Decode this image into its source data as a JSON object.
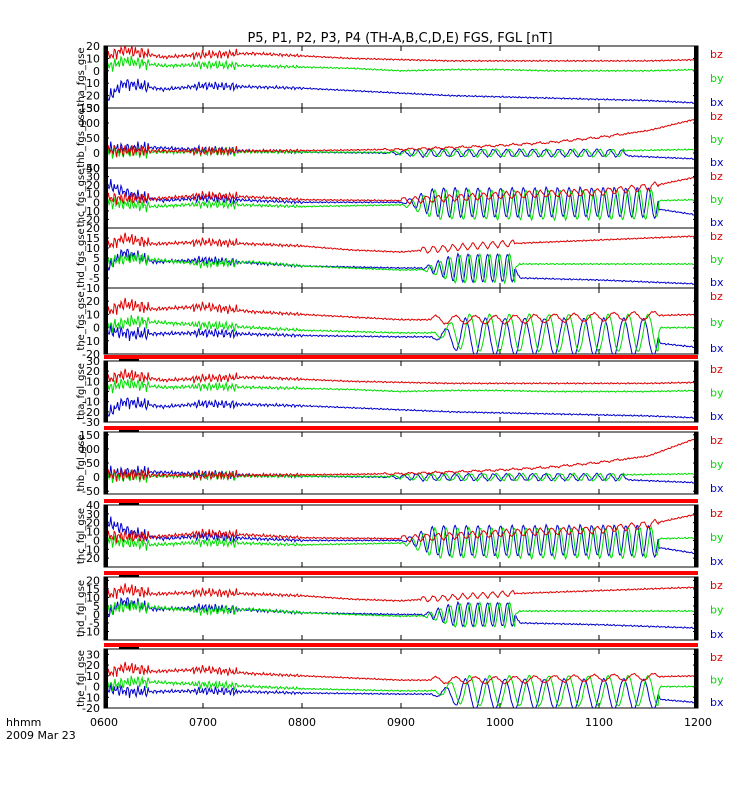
{
  "title": "P5, P1, P2, P3, P4 (TH-A,B,C,D,E) FGS, FGL [nT]",
  "footer": {
    "time_label": "hhmm",
    "date_label": "2009 Mar 23"
  },
  "colors": {
    "bx": "#0000cc",
    "by": "#00dd00",
    "bz": "#dd0000",
    "status_bar": "#ff0000",
    "axes": "#000000"
  },
  "chart_data": {
    "type": "line",
    "x_axis": {
      "label": "hhmm",
      "start": "0600",
      "end": "1200",
      "ticks": [
        "0600",
        "0700",
        "0800",
        "0900",
        "1000",
        "1100",
        "1200"
      ]
    },
    "legend_entries": [
      "bz",
      "by",
      "bx"
    ],
    "panels": [
      {
        "ylabel": "tha_fgs_gse",
        "ylim": [
          -30,
          20
        ],
        "yticks": [
          20,
          10,
          0,
          -10,
          -20,
          -30
        ],
        "status_bar": false,
        "series": {
          "bz": {
            "t": [
              6.0,
              6.2,
              6.6,
              7.0,
              7.5,
              8.0,
              8.5,
              9.0,
              9.5,
              10.0,
              10.5,
              11.0,
              11.5,
              12.0
            ],
            "v": [
              10,
              17,
              11,
              13,
              14,
              12,
              10,
              9,
              8,
              8,
              8,
              8,
              8,
              9
            ]
          },
          "by": {
            "t": [
              6.0,
              6.2,
              6.6,
              7.0,
              7.5,
              8.0,
              8.5,
              9.0,
              9.5,
              10.0,
              10.5,
              11.0,
              11.5,
              12.0
            ],
            "v": [
              2,
              8,
              4,
              5,
              4,
              3,
              2,
              0,
              1,
              1,
              0,
              0,
              0,
              1
            ]
          },
          "bx": {
            "t": [
              6.0,
              6.2,
              6.6,
              7.0,
              7.5,
              8.0,
              8.5,
              9.0,
              9.5,
              10.0,
              10.5,
              11.0,
              11.5,
              12.0
            ],
            "v": [
              -25,
              -10,
              -15,
              -12,
              -13,
              -14,
              -16,
              -18,
              -20,
              -21,
              -22,
              -23,
              -24,
              -26
            ]
          }
        }
      },
      {
        "ylabel": "thb_fgs_gse",
        "ylim": [
          -50,
          150
        ],
        "yticks": [
          150,
          100,
          50,
          0,
          -50
        ],
        "status_bar": false,
        "series": {
          "bz": {
            "t": [
              6.0,
              7.0,
              8.0,
              9.0,
              9.5,
              10.0,
              10.5,
              11.0,
              11.5,
              12.0
            ],
            "v": [
              8,
              6,
              8,
              12,
              18,
              25,
              35,
              52,
              75,
              115
            ]
          },
          "by": {
            "t": [
              6.0,
              7.0,
              8.0,
              9.0,
              9.3,
              11.2,
              11.25,
              12.0
            ],
            "v": [
              2,
              4,
              3,
              2,
              0,
              0,
              8,
              12
            ]
          },
          "bx": {
            "t": [
              6.0,
              6.5,
              7.0,
              7.5,
              8.0,
              8.5,
              9.0,
              11.25,
              11.3,
              12.0
            ],
            "v": [
              14,
              18,
              10,
              6,
              3,
              1,
              0,
              0,
              -10,
              -20
            ]
          }
        },
        "oscillation": {
          "start": 8.8,
          "end": 11.25,
          "period": 0.13,
          "amplitude": 12
        }
      },
      {
        "ylabel": "thc_fgs_gse",
        "ylim": [
          -30,
          40
        ],
        "yticks": [
          40,
          30,
          20,
          10,
          0,
          -10,
          -20
        ],
        "status_bar": false,
        "series": {
          "bz": {
            "t": [
              6.0,
              6.5,
              7.0,
              7.5,
              8.0,
              9.0,
              10.0,
              11.0,
              11.5,
              12.0
            ],
            "v": [
              5,
              4,
              8,
              6,
              3,
              2,
              8,
              12,
              18,
              30
            ]
          },
          "by": {
            "t": [
              6.0,
              6.5,
              7.0,
              8.0,
              9.0,
              9.2,
              11.55,
              11.6,
              12.0
            ],
            "v": [
              0,
              -5,
              -2,
              -5,
              -3,
              -3,
              -3,
              2,
              3
            ]
          },
          "bx": {
            "t": [
              6.0,
              6.3,
              6.6,
              7.0,
              7.5,
              8.0,
              9.0,
              11.55,
              11.6,
              12.0
            ],
            "v": [
              22,
              8,
              2,
              5,
              2,
              0,
              0,
              0,
              -8,
              -15
            ]
          }
        },
        "oscillation": {
          "start": 9.0,
          "end": 11.6,
          "period": 0.115,
          "amplitude": 17
        }
      },
      {
        "ylabel": "thd_fgs_gse",
        "ylim": [
          -10,
          20
        ],
        "yticks": [
          20,
          15,
          10,
          5,
          0,
          -5,
          -10
        ],
        "status_bar": false,
        "series": {
          "bz": {
            "t": [
              6.0,
              6.2,
              6.5,
              7.0,
              7.5,
              8.0,
              8.5,
              9.0,
              9.5,
              10.0,
              11.0,
              12.0
            ],
            "v": [
              10,
              15,
              12,
              13,
              12,
              11,
              9,
              8,
              10,
              12,
              14,
              16
            ]
          },
          "by": {
            "t": [
              6.0,
              6.3,
              7.0,
              7.5,
              8.0,
              8.5,
              9.0,
              10.15,
              10.2,
              12.0
            ],
            "v": [
              3,
              5,
              2,
              3,
              1,
              0,
              -1,
              0,
              2,
              2
            ]
          },
          "bx": {
            "t": [
              6.0,
              6.2,
              6.5,
              7.0,
              8.0,
              9.0,
              10.15,
              10.2,
              11.0,
              12.0
            ],
            "v": [
              -2,
              8,
              3,
              4,
              1,
              0,
              0,
              -5,
              -6,
              -8
            ]
          }
        },
        "oscillation": {
          "start": 9.2,
          "end": 10.15,
          "period": 0.1,
          "amplitude": 7
        }
      },
      {
        "ylabel": "the_fgs_gse",
        "ylim": [
          -20,
          30
        ],
        "yticks": [
          20,
          10,
          0,
          -10,
          -20
        ],
        "status_bar": false,
        "series": {
          "bz": {
            "t": [
              6.0,
              6.2,
              6.5,
              7.0,
              7.5,
              8.0,
              9.0,
              10.0,
              11.0,
              12.0
            ],
            "v": [
              10,
              18,
              14,
              16,
              12,
              10,
              6,
              6,
              8,
              10
            ]
          },
          "by": {
            "t": [
              6.0,
              6.3,
              7.0,
              8.0,
              9.0,
              9.3,
              11.6,
              11.62,
              12.0
            ],
            "v": [
              0,
              5,
              2,
              -2,
              -4,
              -4,
              -4,
              0,
              0
            ]
          },
          "bx": {
            "t": [
              6.0,
              6.3,
              7.0,
              8.0,
              9.0,
              9.3,
              11.6,
              11.62,
              12.0
            ],
            "v": [
              -2,
              -5,
              -4,
              -6,
              -7,
              -7,
              -7,
              -12,
              -15
            ]
          }
        },
        "oscillation": {
          "start": 9.3,
          "end": 11.6,
          "period": 0.2,
          "amplitude": 14
        }
      },
      {
        "ylabel": "tha_fgl_gse",
        "ylim": [
          -30,
          30
        ],
        "yticks": [
          30,
          20,
          10,
          0,
          -10,
          -20,
          -30
        ],
        "status_bar": true,
        "series": {
          "bz": {
            "t": [
              6.0,
              6.2,
              6.6,
              7.0,
              7.5,
              8.0,
              8.5,
              9.0,
              9.5,
              10.0,
              10.5,
              11.0,
              11.5,
              12.0
            ],
            "v": [
              10,
              17,
              11,
              13,
              14,
              12,
              10,
              9,
              8,
              8,
              8,
              8,
              8,
              9
            ]
          },
          "by": {
            "t": [
              6.0,
              6.2,
              6.6,
              7.0,
              7.5,
              8.0,
              8.5,
              9.0,
              9.5,
              10.0,
              10.5,
              11.0,
              11.5,
              12.0
            ],
            "v": [
              2,
              8,
              4,
              5,
              4,
              3,
              2,
              0,
              1,
              1,
              0,
              0,
              0,
              1
            ]
          },
          "bx": {
            "t": [
              6.0,
              6.2,
              6.6,
              7.0,
              7.5,
              8.0,
              8.5,
              9.0,
              9.5,
              10.0,
              10.5,
              11.0,
              11.5,
              12.0
            ],
            "v": [
              -25,
              -10,
              -15,
              -12,
              -13,
              -14,
              -16,
              -18,
              -20,
              -21,
              -22,
              -23,
              -24,
              -26
            ]
          }
        }
      },
      {
        "ylabel": "thb_fgl_gse",
        "ylim": [
          -60,
          160
        ],
        "yticks": [
          150,
          100,
          50,
          0,
          -50
        ],
        "status_bar": true,
        "series": {
          "bz": {
            "t": [
              6.0,
              7.0,
              8.0,
              9.0,
              9.5,
              10.0,
              10.5,
              11.0,
              11.5,
              12.0
            ],
            "v": [
              8,
              6,
              8,
              12,
              18,
              25,
              35,
              52,
              75,
              140
            ]
          },
          "by": {
            "t": [
              6.0,
              7.0,
              8.0,
              9.0,
              9.3,
              11.2,
              11.25,
              12.0
            ],
            "v": [
              2,
              4,
              3,
              2,
              0,
              0,
              8,
              12
            ]
          },
          "bx": {
            "t": [
              6.0,
              6.5,
              7.0,
              7.5,
              8.0,
              8.5,
              9.0,
              11.25,
              11.3,
              12.0
            ],
            "v": [
              14,
              18,
              10,
              6,
              3,
              1,
              0,
              0,
              -10,
              -20
            ]
          }
        },
        "oscillation": {
          "start": 8.8,
          "end": 11.25,
          "period": 0.13,
          "amplitude": 12
        }
      },
      {
        "ylabel": "thc_fgl_gse",
        "ylim": [
          -30,
          40
        ],
        "yticks": [
          40,
          30,
          20,
          10,
          0,
          -10,
          -20
        ],
        "status_bar": true,
        "series": {
          "bz": {
            "t": [
              6.0,
              6.5,
              7.0,
              7.5,
              8.0,
              9.0,
              10.0,
              11.0,
              11.5,
              12.0
            ],
            "v": [
              5,
              4,
              8,
              6,
              3,
              2,
              8,
              12,
              18,
              30
            ]
          },
          "by": {
            "t": [
              6.0,
              6.5,
              7.0,
              8.0,
              9.0,
              9.2,
              11.55,
              11.6,
              12.0
            ],
            "v": [
              0,
              -5,
              -2,
              -5,
              -3,
              -3,
              -3,
              2,
              3
            ]
          },
          "bx": {
            "t": [
              6.0,
              6.3,
              6.6,
              7.0,
              7.5,
              8.0,
              9.0,
              11.55,
              11.6,
              12.0
            ],
            "v": [
              22,
              8,
              2,
              5,
              2,
              0,
              0,
              0,
              -8,
              -15
            ]
          }
        },
        "oscillation": {
          "start": 9.0,
          "end": 11.6,
          "period": 0.115,
          "amplitude": 17
        }
      },
      {
        "ylabel": "thd_fgl_gse",
        "ylim": [
          -15,
          22
        ],
        "yticks": [
          20,
          15,
          10,
          5,
          0,
          -5,
          -10
        ],
        "status_bar": true,
        "series": {
          "bz": {
            "t": [
              6.0,
              6.2,
              6.5,
              7.0,
              7.5,
              8.0,
              8.5,
              9.0,
              9.5,
              10.0,
              11.0,
              12.0
            ],
            "v": [
              10,
              15,
              12,
              13,
              12,
              11,
              9,
              8,
              10,
              12,
              14,
              16
            ]
          },
          "by": {
            "t": [
              6.0,
              6.3,
              7.0,
              7.5,
              8.0,
              8.5,
              9.0,
              10.15,
              10.2,
              12.0
            ],
            "v": [
              3,
              5,
              2,
              3,
              1,
              0,
              -1,
              0,
              2,
              2
            ]
          },
          "bx": {
            "t": [
              6.0,
              6.2,
              6.5,
              7.0,
              8.0,
              9.0,
              10.15,
              10.2,
              11.0,
              12.0
            ],
            "v": [
              -2,
              8,
              3,
              4,
              1,
              0,
              0,
              -5,
              -6,
              -8
            ]
          }
        },
        "oscillation": {
          "start": 9.2,
          "end": 10.15,
          "period": 0.1,
          "amplitude": 7
        }
      },
      {
        "ylabel": "the_fgl_gse",
        "ylim": [
          -20,
          35
        ],
        "yticks": [
          30,
          20,
          10,
          0,
          -10,
          -20
        ],
        "status_bar": true,
        "series": {
          "bz": {
            "t": [
              6.0,
              6.2,
              6.5,
              7.0,
              7.5,
              8.0,
              9.0,
              10.0,
              11.0,
              12.0
            ],
            "v": [
              10,
              18,
              14,
              16,
              12,
              10,
              6,
              6,
              8,
              10
            ]
          },
          "by": {
            "t": [
              6.0,
              6.3,
              7.0,
              8.0,
              9.0,
              9.3,
              11.6,
              11.62,
              12.0
            ],
            "v": [
              0,
              5,
              2,
              -2,
              -4,
              -4,
              -4,
              0,
              0
            ]
          },
          "bx": {
            "t": [
              6.0,
              6.3,
              7.0,
              8.0,
              9.0,
              9.3,
              11.6,
              11.62,
              12.0
            ],
            "v": [
              -2,
              -5,
              -4,
              -6,
              -7,
              -7,
              -7,
              -12,
              -15
            ]
          }
        },
        "oscillation": {
          "start": 9.3,
          "end": 11.6,
          "period": 0.2,
          "amplitude": 14
        }
      }
    ]
  }
}
